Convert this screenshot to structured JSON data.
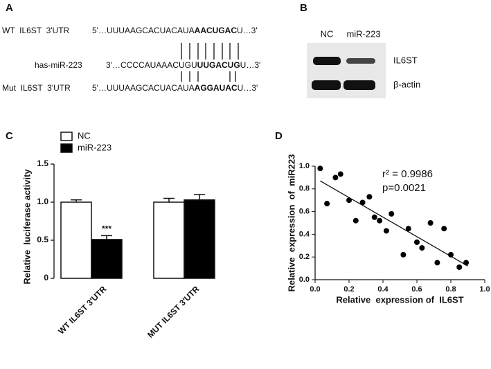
{
  "panel_labels": [
    "A",
    "B",
    "C",
    "D"
  ],
  "sequence": {
    "rows": [
      {
        "label": "WT  IL6ST  3'UTR",
        "seq_start": "5'…UUUAAGCACUACAUA",
        "seq_core": "AACUGAC",
        "seq_end": "U…3'"
      },
      {
        "label": "has-miR-223",
        "seq_start": "3'…CCCCAUAAACUGU",
        "seq_core": "UUGACUG",
        "seq_end": "U…3'"
      },
      {
        "label": "Mut  IL6ST  3'UTR",
        "seq_start": "5'…UUUAAGCACUACAUA",
        "seq_core": "AGGAUAC",
        "seq_end": "U…3'"
      }
    ]
  },
  "blot": {
    "lanes": [
      "NC",
      "miR-223"
    ],
    "proteins": [
      "IL6ST",
      "β-actin"
    ]
  },
  "chart_data": [
    {
      "type": "bar",
      "ylabel": "Relative  luciferase activity",
      "categories": [
        "WT IL6ST 3'UTR",
        "MUT IL6ST 3'UTR"
      ],
      "series": [
        {
          "name": "NC",
          "color": "#ffffff",
          "values": [
            1.0,
            1.0
          ],
          "errors": [
            0.03,
            0.05
          ]
        },
        {
          "name": "miR-223",
          "color": "#000000",
          "values": [
            0.51,
            1.03
          ],
          "errors": [
            0.05,
            0.07
          ]
        }
      ],
      "annotation": "***",
      "ylim": [
        0,
        1.5
      ],
      "yticks": [
        0,
        0.5,
        {
          "value": 1,
          "label": "1.0"
        },
        1.5
      ]
    },
    {
      "type": "scatter",
      "xlabel": "Relative  expression of  IL6ST",
      "ylabel": "Relative  expression  of  miR223",
      "x": [
        0.03,
        0.07,
        0.12,
        0.15,
        0.2,
        0.24,
        0.28,
        0.32,
        0.35,
        0.38,
        0.42,
        0.45,
        0.52,
        0.55,
        0.6,
        0.63,
        0.68,
        0.72,
        0.76,
        0.8,
        0.85,
        0.89
      ],
      "values": [
        0.98,
        0.67,
        0.9,
        0.93,
        0.7,
        0.52,
        0.68,
        0.73,
        0.55,
        0.52,
        0.43,
        0.58,
        0.22,
        0.45,
        0.33,
        0.28,
        0.5,
        0.15,
        0.45,
        0.22,
        0.11,
        0.15
      ],
      "color": "#000000",
      "trendline": {
        "x": [
          0.03,
          0.9
        ],
        "y": [
          0.87,
          0.12
        ]
      },
      "annotations": [
        "r² = 0.9986",
        "p=0.0021"
      ],
      "xlim": [
        0,
        1
      ],
      "xticks": [
        {
          "value": 0,
          "label": "0.0"
        },
        0.2,
        0.4,
        0.6,
        0.8,
        {
          "value": 1,
          "label": "1.0"
        }
      ],
      "ylim": [
        0,
        1
      ],
      "yticks": [
        {
          "value": 0,
          "label": "0.0"
        },
        0.2,
        0.4,
        0.6,
        0.8,
        {
          "value": 1,
          "label": "1.0"
        }
      ]
    }
  ]
}
